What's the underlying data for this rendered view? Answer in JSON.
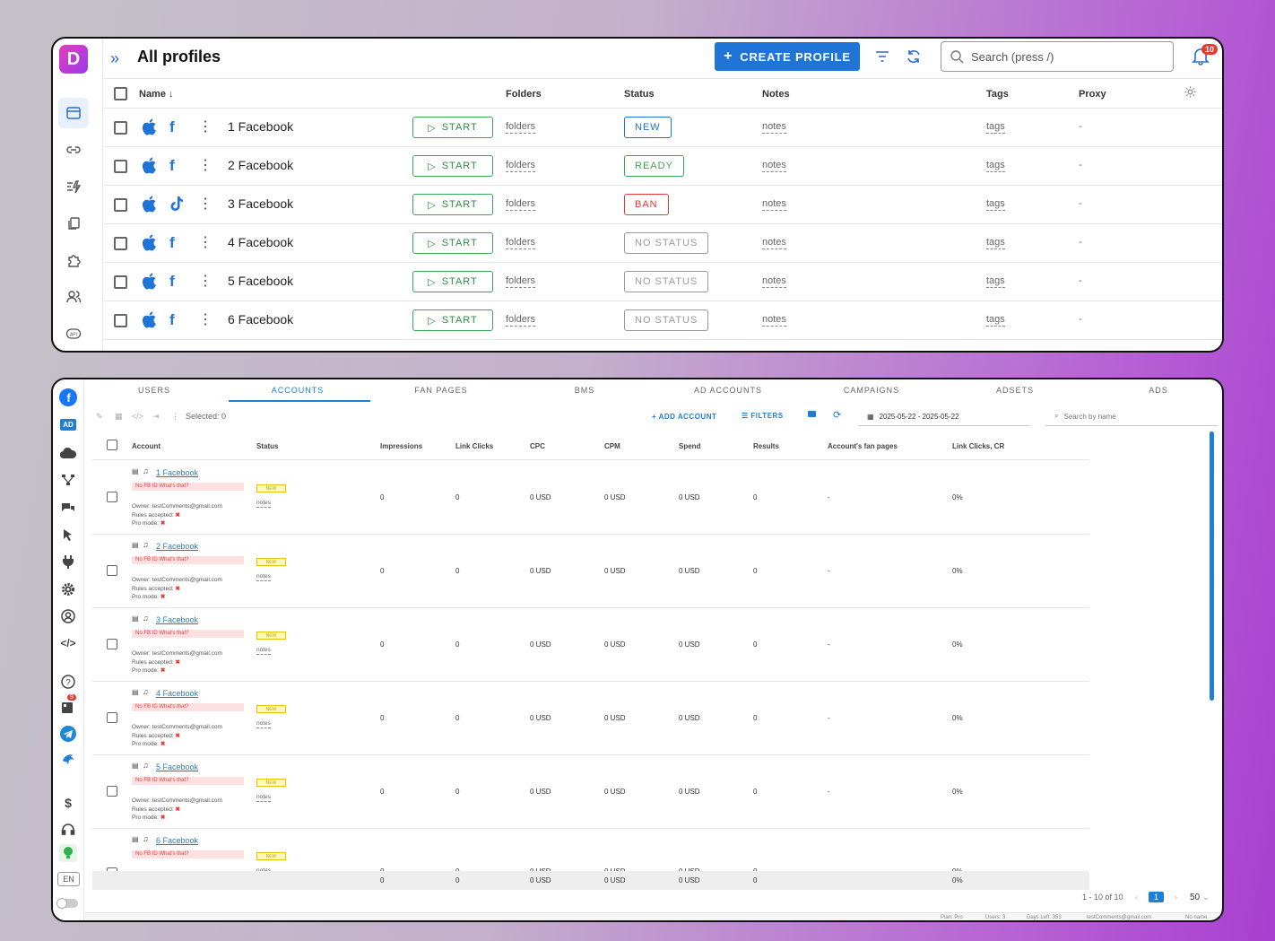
{
  "profiles_window": {
    "title": "All profiles",
    "create_label": "CREATE PROFILE",
    "search_placeholder": "Search (press /)",
    "notif_count": "10",
    "columns": {
      "name": "Name",
      "folders": "Folders",
      "status": "Status",
      "notes": "Notes",
      "tags": "Tags",
      "proxy": "Proxy"
    },
    "rows": [
      {
        "name": "1 Facebook",
        "start": "START",
        "folders": "folders",
        "status": "NEW",
        "status_color": "#1e74d7",
        "notes": "notes",
        "tags": "tags",
        "proxy": "-",
        "icon": "facebook-icon"
      },
      {
        "name": "2 Facebook",
        "start": "START",
        "folders": "folders",
        "status": "READY",
        "status_color": "#3aa657",
        "notes": "notes",
        "tags": "tags",
        "proxy": "-",
        "icon": "facebook-icon"
      },
      {
        "name": "3 Facebook",
        "start": "START",
        "folders": "folders",
        "status": "BAN",
        "status_color": "#e53935",
        "notes": "notes",
        "tags": "tags",
        "proxy": "-",
        "icon": "tiktok-icon"
      },
      {
        "name": "4 Facebook",
        "start": "START",
        "folders": "folders",
        "status": "NO STATUS",
        "status_color": "#9a9a9a",
        "notes": "notes",
        "tags": "tags",
        "proxy": "-",
        "icon": "facebook-icon"
      },
      {
        "name": "5 Facebook",
        "start": "START",
        "folders": "folders",
        "status": "NO STATUS",
        "status_color": "#9a9a9a",
        "notes": "notes",
        "tags": "tags",
        "proxy": "-",
        "icon": "facebook-icon"
      },
      {
        "name": "6 Facebook",
        "start": "START",
        "folders": "folders",
        "status": "NO STATUS",
        "status_color": "#9a9a9a",
        "notes": "notes",
        "tags": "tags",
        "proxy": "-",
        "icon": "facebook-icon"
      }
    ]
  },
  "accounts_window": {
    "tabs": [
      "USERS",
      "ACCOUNTS",
      "FAN PAGES",
      "BMS",
      "AD ACCOUNTS",
      "CAMPAIGNS",
      "ADSETS",
      "ADS"
    ],
    "active_tab": "ACCOUNTS",
    "selected": "Selected: 0",
    "add_account": "ADD ACCOUNT",
    "filters": "FILTERS",
    "date_range": "2025-05-22 - 2025-05-22",
    "search_placeholder": "Search by name",
    "rail_ad": "AD",
    "rail_lang": "EN",
    "rail_badge": "9",
    "columns": [
      "Account",
      "Status",
      "Impressions",
      "Link Clicks",
      "CPC",
      "CPM",
      "Spend",
      "Results",
      "Account's fan pages",
      "Link Clicks, CR"
    ],
    "rows": [
      {
        "name": "1 Facebook",
        "warn": "No FB ID What's that?",
        "owner": "Owner: testComments@gmail.com",
        "rules": "Rules accepted:",
        "pro": "Pro mode:",
        "status": "NEW",
        "notes": "notes",
        "impressions": "0",
        "link_clicks": "0",
        "cpc": "0 USD",
        "cpm": "0 USD",
        "spend": "0 USD",
        "results": "0",
        "fan_pages": "-",
        "cr": "0%"
      },
      {
        "name": "2 Facebook",
        "warn": "No FB ID What's that?",
        "owner": "Owner: testComments@gmail.com",
        "rules": "Rules accepted:",
        "pro": "Pro mode:",
        "status": "NEW",
        "notes": "notes",
        "impressions": "0",
        "link_clicks": "0",
        "cpc": "0 USD",
        "cpm": "0 USD",
        "spend": "0 USD",
        "results": "0",
        "fan_pages": "-",
        "cr": "0%"
      },
      {
        "name": "3 Facebook",
        "warn": "No FB ID What's that?",
        "owner": "Owner: testComments@gmail.com",
        "rules": "Rules accepted:",
        "pro": "Pro mode:",
        "status": "NEW",
        "notes": "notes",
        "impressions": "0",
        "link_clicks": "0",
        "cpc": "0 USD",
        "cpm": "0 USD",
        "spend": "0 USD",
        "results": "0",
        "fan_pages": "-",
        "cr": "0%"
      },
      {
        "name": "4 Facebook",
        "warn": "No FB ID What's that?",
        "owner": "Owner: testComments@gmail.com",
        "rules": "Rules accepted:",
        "pro": "Pro mode:",
        "status": "NEW",
        "notes": "notes",
        "impressions": "0",
        "link_clicks": "0",
        "cpc": "0 USD",
        "cpm": "0 USD",
        "spend": "0 USD",
        "results": "0",
        "fan_pages": "-",
        "cr": "0%"
      },
      {
        "name": "5 Facebook",
        "warn": "No FB ID What's that?",
        "owner": "Owner: testComments@gmail.com",
        "rules": "Rules accepted:",
        "pro": "Pro mode:",
        "status": "NEW",
        "notes": "notes",
        "impressions": "0",
        "link_clicks": "0",
        "cpc": "0 USD",
        "cpm": "0 USD",
        "spend": "0 USD",
        "results": "0",
        "fan_pages": "-",
        "cr": "0%"
      },
      {
        "name": "6 Facebook",
        "warn": "No FB ID What's that?",
        "owner": "",
        "rules": "",
        "pro": "",
        "status": "NEW",
        "notes": "notes",
        "impressions": "0",
        "link_clicks": "0",
        "cpc": "0 USD",
        "cpm": "0 USD",
        "spend": "0 USD",
        "results": "0",
        "fan_pages": "-",
        "cr": "0%"
      }
    ],
    "totals": {
      "impressions": "0",
      "link_clicks": "0",
      "cpc": "0 USD",
      "cpm": "0 USD",
      "spend": "0 USD",
      "results": "0",
      "cr": "0%"
    },
    "pagination": {
      "range": "1 - 10 of 10",
      "page": "1",
      "per_page": "50"
    },
    "statusbar": {
      "plan": "Plan: Pro",
      "users": "Users: 3",
      "days_left": "Days Left: 353",
      "email": "testComments@gmail.com",
      "name": "No name"
    }
  }
}
